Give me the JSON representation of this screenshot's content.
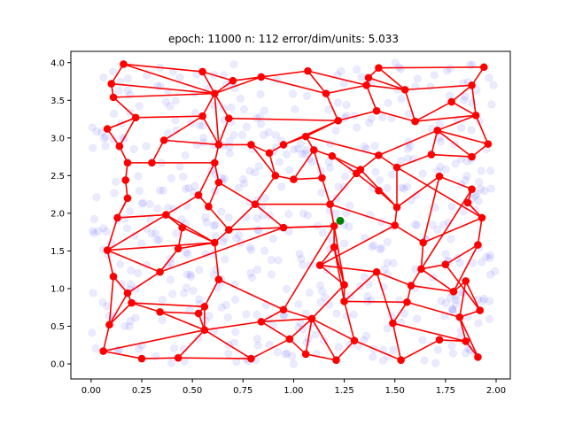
{
  "chart_data": {
    "type": "scatter",
    "title": "epoch: 11000 n: 112 error/dim/units: 5.033",
    "xlabel": "",
    "ylabel": "",
    "xlim": [
      -0.1,
      2.07
    ],
    "ylim": [
      -0.2,
      4.15
    ],
    "grid": false,
    "xticks": [
      0.0,
      0.25,
      0.5,
      0.75,
      1.0,
      1.25,
      1.5,
      1.75,
      2.0
    ],
    "xtick_labels": [
      "0.00",
      "0.25",
      "0.50",
      "0.75",
      "1.00",
      "1.25",
      "1.50",
      "1.75",
      "2.00"
    ],
    "yticks": [
      0.0,
      0.5,
      1.0,
      1.5,
      2.0,
      2.5,
      3.0,
      3.5,
      4.0
    ],
    "ytick_labels": [
      "0.0",
      "0.5",
      "1.0",
      "1.5",
      "2.0",
      "2.5",
      "3.0",
      "3.5",
      "4.0"
    ],
    "colors": {
      "samples": "#0000ff",
      "units": "#ff0000",
      "edges": "#ff0000",
      "highlight": "#008000"
    },
    "highlight_point": [
      1.23,
      1.9
    ],
    "units": [
      [
        0.16,
        3.98
      ],
      [
        0.55,
        3.88
      ],
      [
        0.7,
        3.76
      ],
      [
        0.84,
        3.81
      ],
      [
        1.07,
        3.89
      ],
      [
        1.16,
        3.59
      ],
      [
        1.36,
        3.7
      ],
      [
        1.37,
        3.8
      ],
      [
        1.42,
        3.93
      ],
      [
        1.55,
        3.64
      ],
      [
        1.88,
        3.7
      ],
      [
        1.94,
        3.94
      ],
      [
        0.1,
        3.72
      ],
      [
        0.11,
        3.54
      ],
      [
        0.22,
        3.27
      ],
      [
        0.55,
        3.29
      ],
      [
        0.61,
        3.59
      ],
      [
        0.68,
        3.26
      ],
      [
        1.22,
        3.23
      ],
      [
        1.41,
        3.36
      ],
      [
        1.6,
        3.22
      ],
      [
        1.78,
        3.48
      ],
      [
        1.9,
        3.3
      ],
      [
        1.96,
        2.92
      ],
      [
        0.08,
        3.12
      ],
      [
        0.14,
        2.89
      ],
      [
        0.18,
        2.67
      ],
      [
        0.3,
        2.67
      ],
      [
        0.36,
        2.97
      ],
      [
        0.63,
        2.91
      ],
      [
        0.79,
        2.91
      ],
      [
        0.88,
        2.8
      ],
      [
        0.95,
        2.91
      ],
      [
        1.06,
        3.02
      ],
      [
        1.1,
        2.84
      ],
      [
        1.19,
        2.76
      ],
      [
        1.33,
        2.58
      ],
      [
        1.42,
        2.77
      ],
      [
        1.51,
        2.61
      ],
      [
        1.68,
        2.78
      ],
      [
        1.71,
        3.1
      ],
      [
        1.88,
        2.75
      ],
      [
        0.17,
        2.44
      ],
      [
        0.18,
        2.2
      ],
      [
        0.13,
        1.94
      ],
      [
        0.37,
        1.98
      ],
      [
        0.45,
        1.81
      ],
      [
        0.53,
        2.24
      ],
      [
        0.58,
        2.09
      ],
      [
        0.61,
        2.67
      ],
      [
        0.63,
        2.41
      ],
      [
        0.68,
        1.78
      ],
      [
        0.81,
        2.12
      ],
      [
        0.91,
        2.5
      ],
      [
        1.0,
        2.45
      ],
      [
        1.14,
        2.47
      ],
      [
        1.18,
        2.12
      ],
      [
        1.31,
        2.53
      ],
      [
        1.42,
        2.3
      ],
      [
        1.51,
        2.08
      ],
      [
        1.72,
        2.49
      ],
      [
        1.88,
        2.32
      ],
      [
        1.86,
        2.14
      ],
      [
        1.93,
        1.94
      ],
      [
        0.08,
        1.51
      ],
      [
        0.11,
        1.16
      ],
      [
        0.18,
        0.94
      ],
      [
        0.34,
        1.22
      ],
      [
        0.43,
        1.53
      ],
      [
        0.61,
        1.61
      ],
      [
        0.63,
        1.12
      ],
      [
        0.95,
        1.81
      ],
      [
        1.2,
        1.83
      ],
      [
        1.2,
        1.55
      ],
      [
        1.13,
        1.31
      ],
      [
        1.5,
        1.84
      ],
      [
        1.64,
        1.61
      ],
      [
        1.63,
        1.26
      ],
      [
        1.75,
        1.32
      ],
      [
        1.91,
        1.58
      ],
      [
        0.09,
        0.52
      ],
      [
        0.2,
        0.81
      ],
      [
        0.34,
        0.69
      ],
      [
        0.53,
        0.67
      ],
      [
        0.56,
        0.76
      ],
      [
        0.56,
        0.45
      ],
      [
        0.84,
        0.56
      ],
      [
        0.95,
        0.72
      ],
      [
        1.09,
        0.6
      ],
      [
        1.25,
        1.05
      ],
      [
        1.25,
        0.83
      ],
      [
        1.41,
        1.22
      ],
      [
        1.49,
        0.54
      ],
      [
        1.56,
        0.82
      ],
      [
        1.58,
        1.04
      ],
      [
        1.79,
        0.96
      ],
      [
        1.85,
        1.1
      ],
      [
        1.82,
        0.62
      ],
      [
        1.92,
        0.71
      ],
      [
        0.06,
        0.17
      ],
      [
        0.25,
        0.07
      ],
      [
        0.43,
        0.08
      ],
      [
        0.79,
        0.07
      ],
      [
        0.98,
        0.33
      ],
      [
        1.06,
        0.13
      ],
      [
        1.21,
        0.05
      ],
      [
        1.3,
        0.31
      ],
      [
        1.53,
        0.05
      ],
      [
        1.72,
        0.32
      ],
      [
        1.85,
        0.3
      ],
      [
        1.91,
        0.09
      ]
    ],
    "edges": [
      [
        0,
        1
      ],
      [
        1,
        2
      ],
      [
        2,
        3
      ],
      [
        3,
        4
      ],
      [
        4,
        5
      ],
      [
        5,
        6
      ],
      [
        6,
        7
      ],
      [
        7,
        8
      ],
      [
        8,
        11
      ],
      [
        9,
        10
      ],
      [
        10,
        11
      ],
      [
        7,
        9
      ],
      [
        6,
        9
      ],
      [
        8,
        9
      ],
      [
        4,
        6
      ],
      [
        3,
        5
      ],
      [
        0,
        12
      ],
      [
        12,
        13
      ],
      [
        13,
        14
      ],
      [
        14,
        15
      ],
      [
        15,
        16
      ],
      [
        16,
        17
      ],
      [
        16,
        2
      ],
      [
        1,
        16
      ],
      [
        0,
        16
      ],
      [
        16,
        3
      ],
      [
        12,
        16
      ],
      [
        13,
        16
      ],
      [
        17,
        18
      ],
      [
        18,
        5
      ],
      [
        18,
        19
      ],
      [
        19,
        6
      ],
      [
        19,
        20
      ],
      [
        20,
        21
      ],
      [
        21,
        22
      ],
      [
        21,
        10
      ],
      [
        22,
        23
      ],
      [
        10,
        22
      ],
      [
        9,
        20
      ],
      [
        20,
        22
      ],
      [
        14,
        24
      ],
      [
        24,
        25
      ],
      [
        25,
        26
      ],
      [
        26,
        27
      ],
      [
        27,
        28
      ],
      [
        28,
        15
      ],
      [
        15,
        29
      ],
      [
        29,
        17
      ],
      [
        29,
        30
      ],
      [
        30,
        31
      ],
      [
        31,
        32
      ],
      [
        32,
        33
      ],
      [
        33,
        34
      ],
      [
        34,
        35
      ],
      [
        35,
        36
      ],
      [
        36,
        37
      ],
      [
        37,
        38
      ],
      [
        38,
        39
      ],
      [
        39,
        40
      ],
      [
        40,
        41
      ],
      [
        41,
        23
      ],
      [
        40,
        23
      ],
      [
        40,
        22
      ],
      [
        39,
        41
      ],
      [
        37,
        40
      ],
      [
        33,
        37
      ],
      [
        32,
        18
      ],
      [
        33,
        18
      ],
      [
        29,
        16
      ],
      [
        28,
        29
      ],
      [
        24,
        14
      ],
      [
        25,
        14
      ],
      [
        26,
        42
      ],
      [
        42,
        43
      ],
      [
        43,
        44
      ],
      [
        44,
        45
      ],
      [
        45,
        46
      ],
      [
        45,
        47
      ],
      [
        47,
        48
      ],
      [
        47,
        49
      ],
      [
        49,
        29
      ],
      [
        49,
        27
      ],
      [
        48,
        50
      ],
      [
        50,
        49
      ],
      [
        48,
        51
      ],
      [
        51,
        52
      ],
      [
        52,
        50
      ],
      [
        52,
        53
      ],
      [
        53,
        54
      ],
      [
        54,
        55
      ],
      [
        55,
        56
      ],
      [
        56,
        57
      ],
      [
        57,
        58
      ],
      [
        58,
        59
      ],
      [
        59,
        36
      ],
      [
        59,
        38
      ],
      [
        60,
        61
      ],
      [
        61,
        62
      ],
      [
        62,
        63
      ],
      [
        63,
        38
      ],
      [
        57,
        35
      ],
      [
        53,
        31
      ],
      [
        53,
        30
      ],
      [
        55,
        34
      ],
      [
        54,
        34
      ],
      [
        44,
        64
      ],
      [
        43,
        44
      ],
      [
        64,
        65
      ],
      [
        65,
        66
      ],
      [
        66,
        67
      ],
      [
        67,
        68
      ],
      [
        68,
        69
      ],
      [
        69,
        70
      ],
      [
        69,
        51
      ],
      [
        68,
        46
      ],
      [
        69,
        46
      ],
      [
        51,
        71
      ],
      [
        71,
        72
      ],
      [
        72,
        73
      ],
      [
        73,
        74
      ],
      [
        74,
        75
      ],
      [
        75,
        76
      ],
      [
        76,
        77
      ],
      [
        77,
        78
      ],
      [
        78,
        79
      ],
      [
        79,
        63
      ],
      [
        64,
        67
      ],
      [
        67,
        71
      ],
      [
        71,
        72
      ],
      [
        56,
        72
      ],
      [
        56,
        75
      ],
      [
        75,
        59
      ],
      [
        59,
        60
      ],
      [
        60,
        76
      ],
      [
        76,
        63
      ],
      [
        61,
        77
      ],
      [
        52,
        71
      ],
      [
        52,
        56
      ],
      [
        64,
        45
      ],
      [
        64,
        69
      ],
      [
        69,
        45
      ],
      [
        66,
        80
      ],
      [
        80,
        81
      ],
      [
        81,
        82
      ],
      [
        82,
        83
      ],
      [
        83,
        84
      ],
      [
        84,
        85
      ],
      [
        85,
        86
      ],
      [
        86,
        87
      ],
      [
        87,
        88
      ],
      [
        88,
        89
      ],
      [
        89,
        90
      ],
      [
        90,
        91
      ],
      [
        91,
        92
      ],
      [
        92,
        93
      ],
      [
        93,
        94
      ],
      [
        94,
        95
      ],
      [
        95,
        96
      ],
      [
        96,
        97
      ],
      [
        97,
        98
      ],
      [
        98,
        78
      ],
      [
        66,
        81
      ],
      [
        81,
        84
      ],
      [
        84,
        70
      ],
      [
        70,
        87
      ],
      [
        87,
        72
      ],
      [
        72,
        89
      ],
      [
        89,
        74
      ],
      [
        74,
        91
      ],
      [
        91,
        94
      ],
      [
        94,
        77
      ],
      [
        77,
        95
      ],
      [
        95,
        79
      ],
      [
        73,
        89
      ],
      [
        73,
        90
      ],
      [
        90,
        93
      ],
      [
        93,
        97
      ],
      [
        96,
        98
      ],
      [
        65,
        80
      ],
      [
        82,
        85
      ],
      [
        85,
        83
      ],
      [
        86,
        88
      ],
      [
        80,
        99
      ],
      [
        99,
        100
      ],
      [
        100,
        101
      ],
      [
        101,
        102
      ],
      [
        102,
        103
      ],
      [
        103,
        104
      ],
      [
        104,
        105
      ],
      [
        105,
        106
      ],
      [
        106,
        107
      ],
      [
        107,
        108
      ],
      [
        108,
        109
      ],
      [
        109,
        110
      ],
      [
        110,
        111
      ],
      [
        111,
        98
      ],
      [
        99,
        85
      ],
      [
        101,
        85
      ],
      [
        85,
        102
      ],
      [
        86,
        103
      ],
      [
        88,
        103
      ],
      [
        88,
        104
      ],
      [
        88,
        105
      ],
      [
        88,
        106
      ],
      [
        90,
        106
      ],
      [
        92,
        107
      ],
      [
        92,
        109
      ],
      [
        97,
        109
      ],
      [
        97,
        110
      ],
      [
        98,
        111
      ]
    ]
  }
}
